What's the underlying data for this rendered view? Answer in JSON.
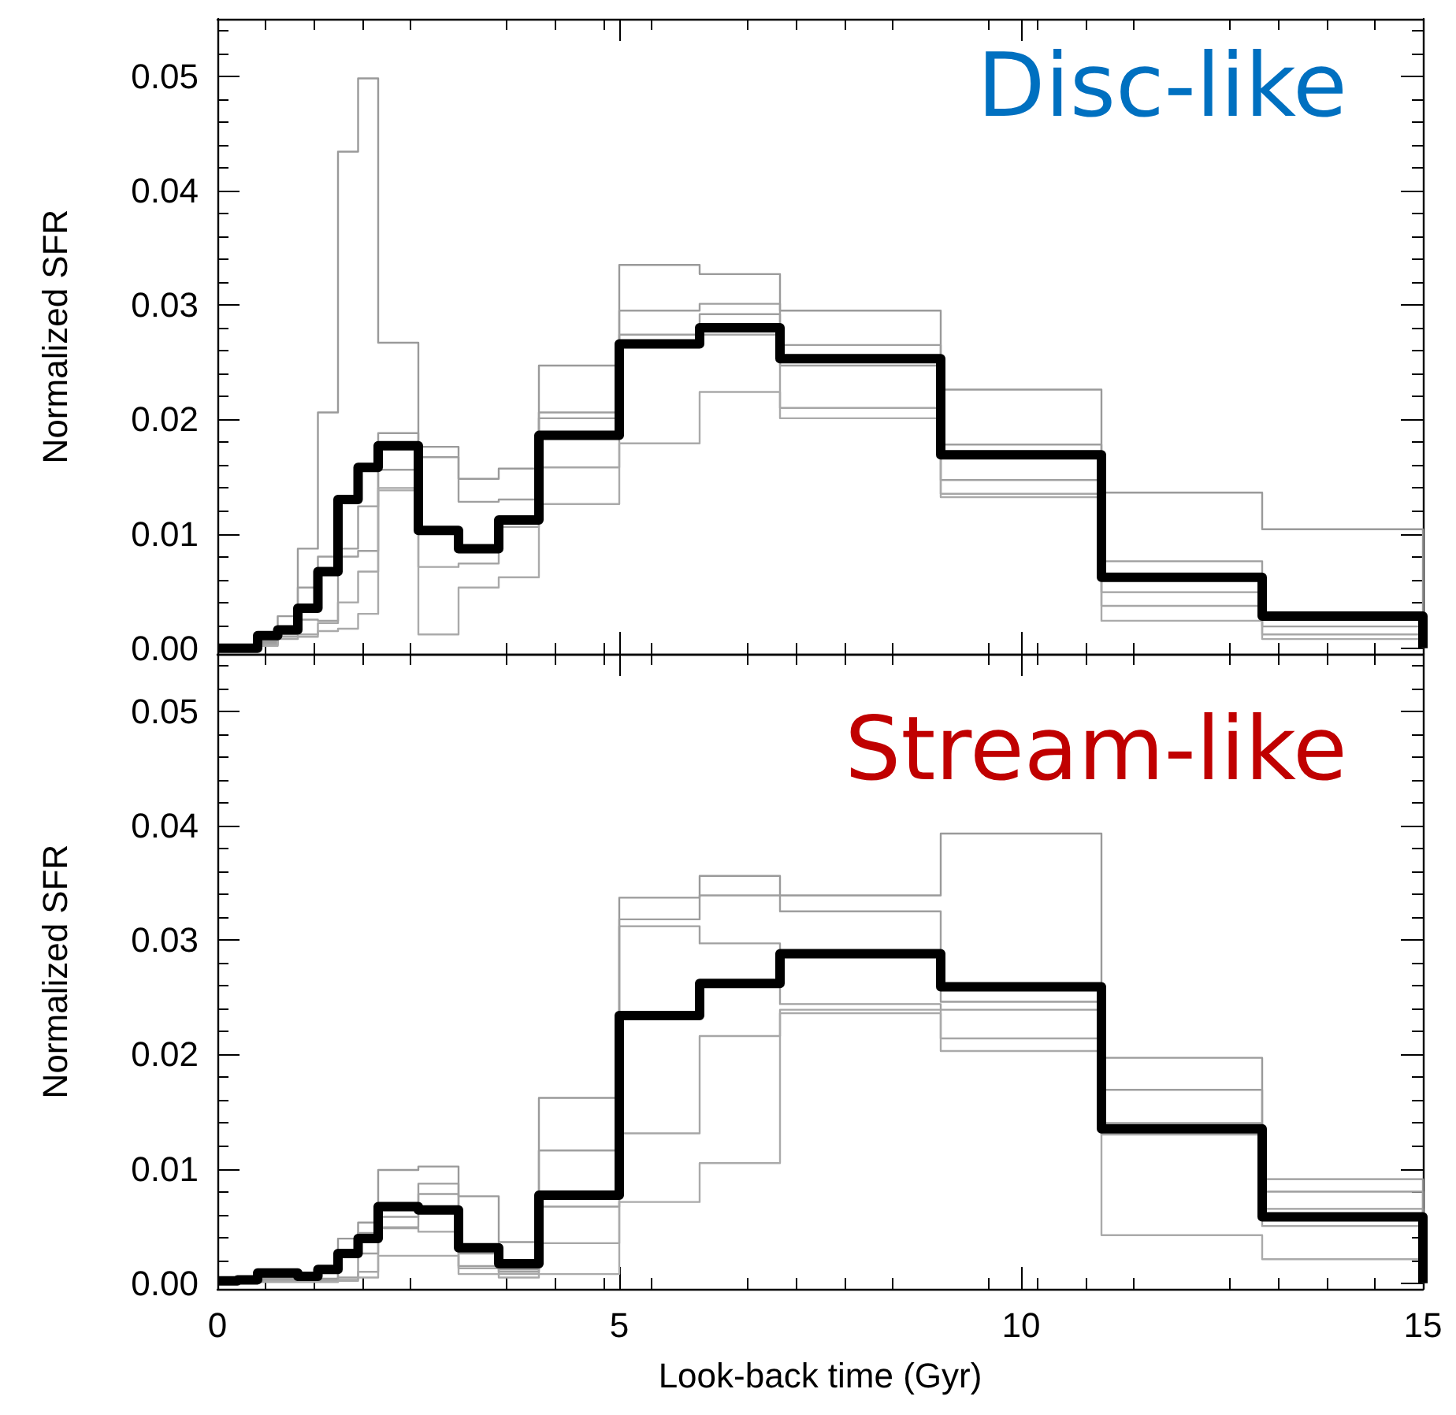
{
  "chart_data": [
    {
      "type": "histogram",
      "title": "Disc-like",
      "ylabel": "Normalized SFR",
      "bins": [
        0,
        0.25,
        0.5,
        0.75,
        1,
        1.25,
        1.5,
        1.75,
        2,
        2.5,
        3,
        3.5,
        4,
        5,
        6,
        7,
        9,
        11,
        13,
        15
      ],
      "series": [
        {
          "color": "#9a9a9a",
          "values": [
            0,
            0,
            0.0006,
            0.0028,
            0.0087,
            0.0206,
            0.0434,
            0.0498,
            0.0267,
            0.0176,
            0.0148,
            0.0157,
            0.0247,
            0.0335,
            0.0327,
            0.0295,
            0.0226,
            0.0136,
            0.0104
          ]
        },
        {
          "color": "#9e9e9e",
          "values": [
            0,
            0,
            0.0005,
            0.0018,
            0.0053,
            0.008,
            0.0087,
            0.0124,
            0.0188,
            0.0167,
            0.0128,
            0.013,
            0.0206,
            0.0295,
            0.0301,
            0.0265,
            0.0178,
            0.0076,
            0.0026
          ]
        },
        {
          "color": "#a0a0a0",
          "values": [
            0,
            0,
            0.0004,
            0.0012,
            0.0025,
            0.0024,
            0.008,
            0.0085,
            0.0156,
            0.0105,
            0.0085,
            0.011,
            0.0201,
            0.0274,
            0.0292,
            0.0247,
            0.0147,
            0.0049,
            0.0019
          ]
        },
        {
          "color": "#a6a6a6",
          "values": [
            0,
            0,
            0.0003,
            0.001,
            0.0012,
            0.0022,
            0.004,
            0.0067,
            0.014,
            0.0071,
            0.0074,
            0.0106,
            0.0158,
            0.0268,
            0.0274,
            0.021,
            0.0135,
            0.0037,
            0.0012
          ]
        },
        {
          "color": "#aaaaaa",
          "values": [
            0,
            0,
            0.0002,
            0.0008,
            0.001,
            0.0015,
            0.0017,
            0.003,
            0.0138,
            0.0012,
            0.0053,
            0.0062,
            0.0126,
            0.0179,
            0.0224,
            0.0201,
            0.0132,
            0.0024,
            0.0008
          ]
        },
        {
          "color": "#000000",
          "values": [
            0,
            0,
            0.0011,
            0.0016,
            0.0035,
            0.0067,
            0.013,
            0.0158,
            0.0177,
            0.0103,
            0.0087,
            0.0112,
            0.0186,
            0.0266,
            0.028,
            0.0253,
            0.0169,
            0.0062,
            0.0028
          ]
        }
      ],
      "xlim": [
        0,
        15
      ],
      "xticks": [
        0,
        5,
        10,
        15
      ],
      "ylim": [
        -0.0005,
        0.055
      ],
      "yticks": [
        {
          "value": 0,
          "label": "0.00"
        },
        {
          "value": 0.01,
          "label": "0.01"
        },
        {
          "value": 0.02,
          "label": "0.02"
        },
        {
          "value": 0.03,
          "label": "0.03"
        },
        {
          "value": 0.04,
          "label": "0.04"
        },
        {
          "value": 0.05,
          "label": "0.05"
        }
      ],
      "tick_labels": "y",
      "grid": false
    },
    {
      "type": "histogram",
      "title": "Stream-like",
      "ylabel": "Normalized SFR",
      "xlabel": "Look-back time (Gyr)",
      "bins": [
        0,
        0.25,
        0.5,
        0.75,
        1,
        1.25,
        1.5,
        1.75,
        2,
        2.5,
        3,
        3.5,
        4,
        5,
        6,
        7,
        9,
        11,
        13,
        15
      ],
      "series": [
        {
          "color": "#9a9a9a",
          "values": [
            0,
            0,
            0.0005,
            0.0005,
            0.0005,
            0.0004,
            0.0039,
            0.0053,
            0.0099,
            0.0102,
            0.0076,
            0.0036,
            0.0162,
            0.0337,
            0.0356,
            0.0339,
            0.0393,
            0.0197,
            0.0091
          ]
        },
        {
          "color": "#9e9e9e",
          "values": [
            0,
            0,
            0.0004,
            0.0004,
            0.0004,
            0.0003,
            0.0028,
            0.0044,
            0.0058,
            0.0087,
            0.0026,
            0.0012,
            0.0116,
            0.0318,
            0.0339,
            0.0325,
            0.0246,
            0.0169,
            0.008
          ]
        },
        {
          "color": "#a0a0a0",
          "values": [
            0,
            0,
            0.0003,
            0.0003,
            0.0003,
            0.0003,
            0.0005,
            0.0026,
            0.0049,
            0.0078,
            0.0015,
            0.001,
            0.0067,
            0.0312,
            0.0297,
            0.0244,
            0.0239,
            0.014,
            0.0065
          ]
        },
        {
          "color": "#a6a6a6",
          "values": [
            0,
            0,
            0.0002,
            0.0002,
            0.0002,
            0.0002,
            0.0003,
            0.001,
            0.0048,
            0.0045,
            0.0013,
            0.0008,
            0.0035,
            0.0131,
            0.0216,
            0.0239,
            0.0214,
            0.013,
            0.005
          ]
        },
        {
          "color": "#aaaaaa",
          "values": [
            0,
            0,
            0.0001,
            0.0001,
            0.0001,
            0.0001,
            0.0002,
            0.0005,
            0.0024,
            0.0024,
            0.0008,
            0.0005,
            0.0008,
            0.0071,
            0.0105,
            0.0236,
            0.0203,
            0.0042,
            0.0021
          ]
        },
        {
          "color": "#000000",
          "values": [
            0.0002,
            0.0003,
            0.0009,
            0.0009,
            0.0006,
            0.0012,
            0.0026,
            0.0039,
            0.0067,
            0.0064,
            0.0031,
            0.0017,
            0.0077,
            0.0234,
            0.0262,
            0.0288,
            0.0259,
            0.0135,
            0.0058
          ]
        }
      ],
      "xlim": [
        0,
        15
      ],
      "xticks": [
        0,
        5,
        10,
        15
      ],
      "ylim": [
        -0.0005,
        0.055
      ],
      "yticks": [
        {
          "value": 0,
          "label": "0.00"
        },
        {
          "value": 0.01,
          "label": "0.01"
        },
        {
          "value": 0.02,
          "label": "0.02"
        },
        {
          "value": 0.03,
          "label": "0.03"
        },
        {
          "value": 0.04,
          "label": "0.04"
        },
        {
          "value": 0.05,
          "label": "0.05"
        }
      ],
      "grid": false
    }
  ]
}
